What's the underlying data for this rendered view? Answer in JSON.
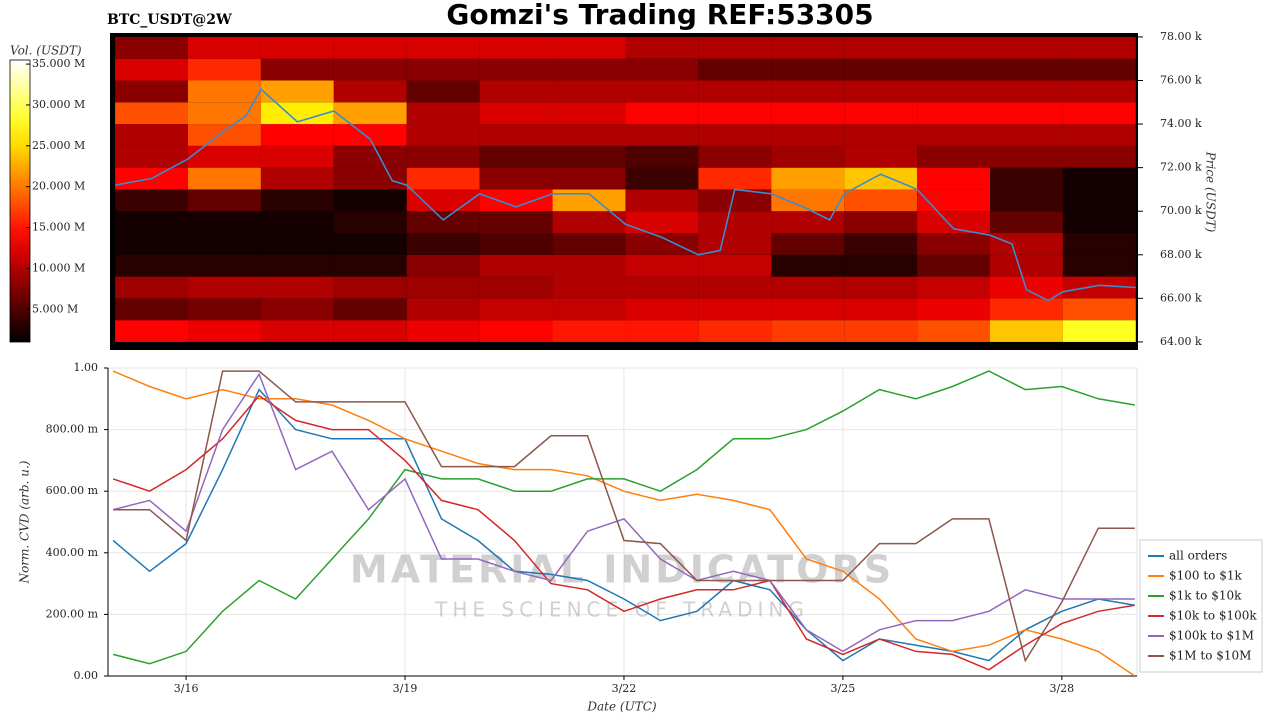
{
  "title": "Gomzi's Trading REF:53305",
  "watermark": {
    "line1": "MATERIAL INDICATORS",
    "line2": "THE SCIENCE OF TRADING"
  },
  "chart_data": [
    {
      "type": "heatmap",
      "subtitle": "BTC_USDT@2W",
      "ylabel": "Price (USDT)",
      "colorbar_label": "Vol. (USDT)",
      "xlim": [
        14.93,
        29.03
      ],
      "ylim": [
        63630,
        78180
      ],
      "yticks": [
        {
          "value": 64000,
          "label": "64.00 k"
        },
        {
          "value": 66000,
          "label": "66.00 k"
        },
        {
          "value": 68000,
          "label": "68.00 k"
        },
        {
          "value": 70000,
          "label": "70.00 k"
        },
        {
          "value": 72000,
          "label": "72.00 k"
        },
        {
          "value": 74000,
          "label": "74.00 k"
        },
        {
          "value": 76000,
          "label": "76.00 k"
        },
        {
          "value": 78000,
          "label": "78.00 k"
        }
      ],
      "clim": [
        1000000,
        35500000
      ],
      "cticks": [
        {
          "value": 5000000,
          "label": "5.000 M"
        },
        {
          "value": 10000000,
          "label": "10.000 M"
        },
        {
          "value": 15000000,
          "label": "15.000 M"
        },
        {
          "value": 20000000,
          "label": "20.000 M"
        },
        {
          "value": 25000000,
          "label": "25.000 M"
        },
        {
          "value": 30000000,
          "label": "30.000 M"
        },
        {
          "value": 35000000,
          "label": "35.000 M"
        }
      ],
      "x_bins": [
        15,
        16,
        17,
        18,
        19,
        20,
        21,
        22,
        23,
        24,
        25,
        26,
        27,
        28,
        29
      ],
      "y_bins": [
        64000,
        65000,
        66000,
        67000,
        68000,
        69000,
        70000,
        71000,
        72000,
        73000,
        74000,
        75000,
        76000,
        77000,
        78000
      ],
      "z": [
        [
          14000000,
          13000000,
          12000000,
          12000000,
          13000000,
          14000000,
          15000000,
          15000000,
          16000000,
          17000000,
          17000000,
          18000000,
          24000000,
          28000000
        ],
        [
          6000000,
          7000000,
          8000000,
          6000000,
          10000000,
          11000000,
          11000000,
          12000000,
          12000000,
          12000000,
          12000000,
          13000000,
          16000000,
          18000000
        ],
        [
          9000000,
          10000000,
          10000000,
          9000000,
          9000000,
          9000000,
          10000000,
          10000000,
          10000000,
          10000000,
          10000000,
          11000000,
          13000000,
          11000000
        ],
        [
          3000000,
          3000000,
          3000000,
          3000000,
          8000000,
          10000000,
          10000000,
          11000000,
          11000000,
          3000000,
          3000000,
          6000000,
          10000000,
          3000000
        ],
        [
          2000000,
          2000000,
          2000000,
          2000000,
          4000000,
          5000000,
          6000000,
          8000000,
          10000000,
          6000000,
          4000000,
          8000000,
          10000000,
          3000000
        ],
        [
          2000000,
          2000000,
          2000000,
          3000000,
          6000000,
          6000000,
          10000000,
          12000000,
          10000000,
          10000000,
          8000000,
          12000000,
          6000000,
          2000000
        ],
        [
          4000000,
          6000000,
          3000000,
          2000000,
          12000000,
          14000000,
          22000000,
          10000000,
          8000000,
          20000000,
          18000000,
          14000000,
          4000000,
          2000000
        ],
        [
          14000000,
          20000000,
          10000000,
          8000000,
          16000000,
          8000000,
          8000000,
          4000000,
          16000000,
          22000000,
          24000000,
          14000000,
          4000000,
          2000000
        ],
        [
          10000000,
          12000000,
          12000000,
          8000000,
          8000000,
          6000000,
          6000000,
          5000000,
          8000000,
          9000000,
          10000000,
          8000000,
          8000000,
          8000000
        ],
        [
          10000000,
          18000000,
          14000000,
          14000000,
          10000000,
          10000000,
          10000000,
          10000000,
          10000000,
          10000000,
          10000000,
          10000000,
          10000000,
          10000000
        ],
        [
          18000000,
          20000000,
          26000000,
          22000000,
          10000000,
          12000000,
          12000000,
          14000000,
          14000000,
          14000000,
          14000000,
          14000000,
          14000000,
          14000000
        ],
        [
          8000000,
          20000000,
          22000000,
          10000000,
          6000000,
          10000000,
          10000000,
          10000000,
          10000000,
          10000000,
          10000000,
          10000000,
          10000000,
          10000000
        ],
        [
          12000000,
          16000000,
          8000000,
          8000000,
          8000000,
          8000000,
          8000000,
          8000000,
          6000000,
          6000000,
          6000000,
          6000000,
          6000000,
          6000000
        ],
        [
          8000000,
          12000000,
          12000000,
          12000000,
          12000000,
          12000000,
          12000000,
          10000000,
          10000000,
          10000000,
          10000000,
          10000000,
          10000000,
          10000000
        ]
      ],
      "price_line": {
        "color": "#3c8ad0",
        "x": [
          15.0,
          15.5,
          16.0,
          16.5,
          16.8,
          17.0,
          17.5,
          18.0,
          18.5,
          18.8,
          19.0,
          19.5,
          20.0,
          20.5,
          21.0,
          21.5,
          22.0,
          22.5,
          23.0,
          23.3,
          23.5,
          24.0,
          24.5,
          24.8,
          25.0,
          25.5,
          26.0,
          26.5,
          27.0,
          27.3,
          27.5,
          27.8,
          28.0,
          28.5,
          29.0
        ],
        "values": [
          71200,
          71500,
          72400,
          73700,
          74400,
          75600,
          74100,
          74600,
          73300,
          71400,
          71200,
          69600,
          70800,
          70200,
          70800,
          70800,
          69400,
          68800,
          68000,
          68200,
          71000,
          70800,
          70100,
          69600,
          70800,
          71700,
          71000,
          69200,
          68900,
          68500,
          66400,
          65900,
          66300,
          66600,
          66500
        ]
      }
    },
    {
      "type": "line",
      "xlabel": "Date (UTC)",
      "ylabel": "Norm. CVD (arb. u.)",
      "grid": true,
      "legend": "lower right",
      "xlim": [
        14.93,
        29.03
      ],
      "ylim": [
        0,
        1
      ],
      "xticks": [
        {
          "value": 16,
          "label": "3/16"
        },
        {
          "value": 19,
          "label": "3/19"
        },
        {
          "value": 22,
          "label": "3/22"
        },
        {
          "value": 25,
          "label": "3/25"
        },
        {
          "value": 28,
          "label": "3/28"
        }
      ],
      "yticks": [
        {
          "value": 0,
          "label": "0.00"
        },
        {
          "value": 0.2,
          "label": "200.00 m"
        },
        {
          "value": 0.4,
          "label": "400.00 m"
        },
        {
          "value": 0.6,
          "label": "600.00 m"
        },
        {
          "value": 0.8,
          "label": "800.00 m"
        },
        {
          "value": 1,
          "label": "1.00"
        }
      ],
      "x": [
        15.0,
        15.5,
        16.0,
        16.5,
        17.0,
        17.5,
        18.0,
        18.5,
        19.0,
        19.5,
        20.0,
        20.5,
        21.0,
        21.5,
        22.0,
        22.5,
        23.0,
        23.5,
        24.0,
        24.5,
        25.0,
        25.5,
        26.0,
        26.5,
        27.0,
        27.5,
        28.0,
        28.5,
        29.0
      ],
      "series": [
        {
          "name": "all orders",
          "color": "#1f77b4",
          "values": [
            0.44,
            0.34,
            0.43,
            0.67,
            0.93,
            0.8,
            0.77,
            0.77,
            0.77,
            0.51,
            0.44,
            0.34,
            0.33,
            0.31,
            0.25,
            0.18,
            0.21,
            0.31,
            0.28,
            0.15,
            0.05,
            0.12,
            0.1,
            0.08,
            0.05,
            0.15,
            0.21,
            0.25,
            0.23
          ]
        },
        {
          "name": "$100 to $1k",
          "color": "#ff7f0e",
          "values": [
            0.99,
            0.94,
            0.9,
            0.93,
            0.9,
            0.9,
            0.88,
            0.83,
            0.77,
            0.73,
            0.69,
            0.67,
            0.67,
            0.65,
            0.6,
            0.57,
            0.59,
            0.57,
            0.54,
            0.38,
            0.34,
            0.25,
            0.12,
            0.08,
            0.1,
            0.15,
            0.12,
            0.08,
            0.0
          ]
        },
        {
          "name": "$1k to $10k",
          "color": "#2ca02c",
          "values": [
            0.07,
            0.04,
            0.08,
            0.21,
            0.31,
            0.25,
            0.38,
            0.51,
            0.67,
            0.64,
            0.64,
            0.6,
            0.6,
            0.64,
            0.64,
            0.6,
            0.67,
            0.77,
            0.77,
            0.8,
            0.86,
            0.93,
            0.9,
            0.94,
            0.99,
            0.93,
            0.94,
            0.9,
            0.88
          ]
        },
        {
          "name": "$10k to $100k",
          "color": "#d62728",
          "values": [
            0.64,
            0.6,
            0.67,
            0.77,
            0.91,
            0.83,
            0.8,
            0.8,
            0.7,
            0.57,
            0.54,
            0.44,
            0.3,
            0.28,
            0.21,
            0.25,
            0.28,
            0.28,
            0.31,
            0.12,
            0.07,
            0.12,
            0.08,
            0.07,
            0.02,
            0.1,
            0.17,
            0.21,
            0.23
          ]
        },
        {
          "name": "$100k to $1M",
          "color": "#9467bd",
          "values": [
            0.54,
            0.57,
            0.47,
            0.8,
            0.98,
            0.67,
            0.73,
            0.54,
            0.64,
            0.38,
            0.38,
            0.34,
            0.31,
            0.47,
            0.51,
            0.38,
            0.31,
            0.34,
            0.31,
            0.15,
            0.08,
            0.15,
            0.18,
            0.18,
            0.21,
            0.28,
            0.25,
            0.25,
            0.25
          ]
        },
        {
          "name": "$1M to $10M",
          "color": "#8c564b",
          "values": [
            0.54,
            0.54,
            0.44,
            0.99,
            0.99,
            0.89,
            0.89,
            0.89,
            0.89,
            0.68,
            0.68,
            0.68,
            0.78,
            0.78,
            0.44,
            0.43,
            0.31,
            0.31,
            0.31,
            0.31,
            0.31,
            0.43,
            0.43,
            0.51,
            0.51,
            0.05,
            0.24,
            0.48,
            0.48
          ]
        }
      ]
    }
  ]
}
